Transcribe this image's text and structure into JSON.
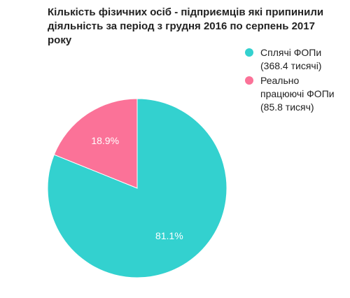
{
  "title": {
    "lines": [
      "Кількість фізичних осіб - підприємців які припинили",
      "діяльність за період з грудня 2016 по серпень 2017 року"
    ]
  },
  "legend": {
    "items": [
      {
        "lines": [
          "Сплячі ФОПи",
          "(368.4 тисячі)"
        ],
        "color": "#33d1cf"
      },
      {
        "lines": [
          "Реально",
          "працюючі ФОПи",
          "(85.8 тисяч)"
        ],
        "color": "#fb7298"
      }
    ]
  },
  "chart_data": {
    "type": "pie",
    "title": "Кількість фізичних осіб - підприємців які припинили діяльність за період з грудня 2016 по серпень 2017 року",
    "legend_position": "right",
    "slices": [
      {
        "name": "Сплячі ФОПи (368.4 тисячі)",
        "value": 368.4,
        "percent_label": "81.1%",
        "color": "#33d1cf"
      },
      {
        "name": "Реально працюючі ФОПи (85.8 тисяч)",
        "value": 85.8,
        "percent_label": "18.9%",
        "color": "#fb7298"
      }
    ]
  }
}
